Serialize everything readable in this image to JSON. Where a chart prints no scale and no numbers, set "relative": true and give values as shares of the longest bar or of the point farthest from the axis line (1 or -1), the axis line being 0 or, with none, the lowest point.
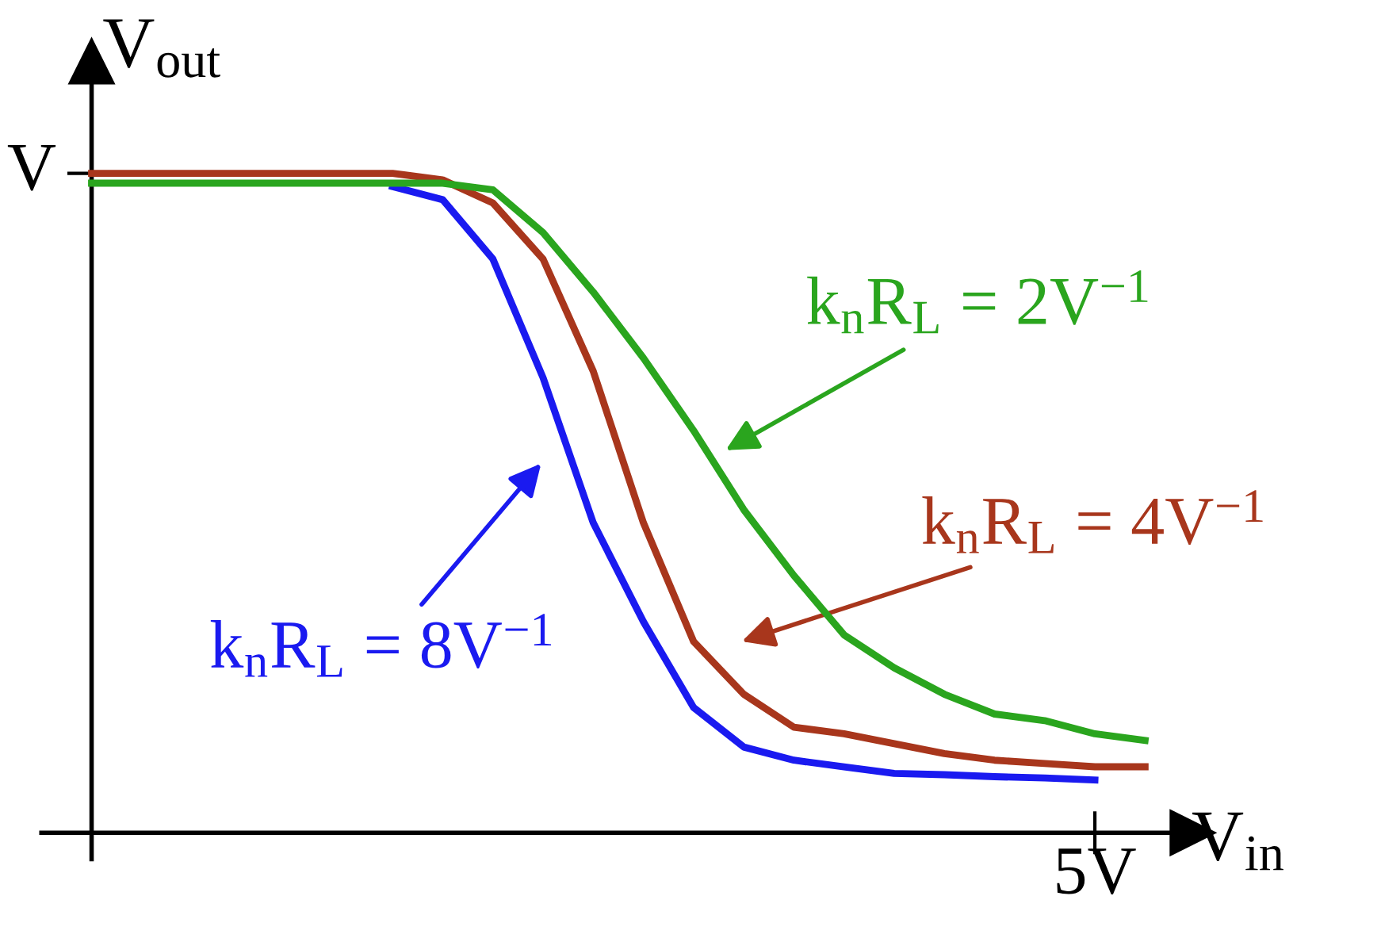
{
  "chart_data": {
    "type": "line",
    "relative": true,
    "xlabel": "V$_{in}$",
    "ylabel": "V$_{out}$",
    "grid": false,
    "marker": "none",
    "line_style": "solid",
    "categories": [
      null,
      null,
      null,
      null,
      null,
      null,
      null,
      null,
      null,
      null,
      null,
      null,
      null,
      null,
      null,
      null,
      null,
      null,
      null,
      null,
      null,
      null
    ],
    "series": [
      {
        "color": "#2aa51e",
        "values": [
          0.985,
          0.985,
          0.985,
          0.985,
          0.985,
          0.985,
          0.985,
          0.985,
          0.975,
          0.91,
          0.82,
          0.72,
          0.61,
          0.49,
          0.39,
          0.3,
          0.25,
          0.21,
          0.18,
          0.17,
          0.15,
          0.14
        ]
      },
      {
        "color": "#a8361c",
        "values": [
          1.0,
          1.0,
          1.0,
          1.0,
          1.0,
          1.0,
          1.0,
          0.99,
          0.955,
          0.87,
          0.7,
          0.47,
          0.29,
          0.21,
          0.16,
          0.15,
          0.135,
          0.12,
          0.11,
          0.105,
          0.1,
          0.1
        ]
      },
      {
        "color": "#1a1af0",
        "values": [
          null,
          null,
          null,
          null,
          null,
          null,
          0.98,
          0.96,
          0.87,
          0.69,
          0.47,
          0.32,
          0.19,
          0.13,
          0.11,
          0.1,
          0.09,
          0.088,
          0.085,
          0.083,
          0.08,
          null
        ]
      }
    ],
    "annotations": [
      "k$_{n}$R$_{L}$ = 2V$^{−1}$",
      "k$_{n}$R$_{L}$ = 4V$^{−1}$",
      "k$_{n}$R$_{L}$ = 8V$^{−1}$",
      "V",
      "5V"
    ]
  }
}
